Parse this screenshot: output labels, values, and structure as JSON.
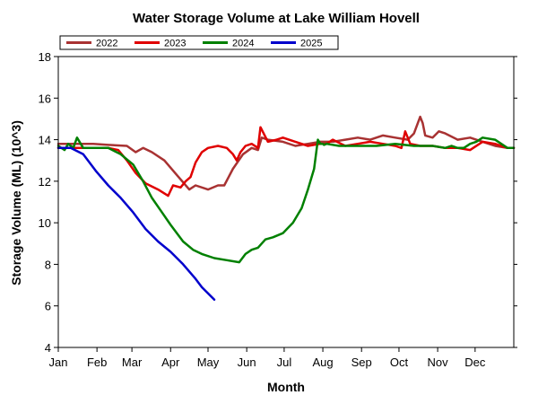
{
  "chart_data": {
    "type": "line",
    "title": "Water Storage Volume at Lake William Hovell",
    "xlabel": "Month",
    "ylabel": "Storage Volume (ML) (10^3)",
    "xlim": [
      0,
      365
    ],
    "ylim": [
      4,
      18
    ],
    "yticks": [
      4,
      6,
      8,
      10,
      12,
      14,
      16,
      18
    ],
    "xticks": [
      {
        "label": "Jan",
        "day": 0
      },
      {
        "label": "Feb",
        "day": 31
      },
      {
        "label": "Mar",
        "day": 59
      },
      {
        "label": "Apr",
        "day": 90
      },
      {
        "label": "May",
        "day": 120
      },
      {
        "label": "Jun",
        "day": 151
      },
      {
        "label": "Jul",
        "day": 181
      },
      {
        "label": "Aug",
        "day": 212
      },
      {
        "label": "Sep",
        "day": 243
      },
      {
        "label": "Oct",
        "day": 273
      },
      {
        "label": "Nov",
        "day": 304
      },
      {
        "label": "Dec",
        "day": 334
      }
    ],
    "grid": false,
    "legend_position": "top-left",
    "series": [
      {
        "name": "2022",
        "color": "#a83232",
        "x": [
          0,
          15,
          28,
          40,
          55,
          62,
          68,
          75,
          85,
          95,
          105,
          110,
          120,
          128,
          133,
          140,
          148,
          155,
          160,
          163,
          168,
          180,
          190,
          200,
          210,
          220,
          230,
          240,
          250,
          260,
          270,
          280,
          285,
          290,
          292,
          294,
          300,
          305,
          310,
          320,
          330,
          340,
          350,
          360,
          365
        ],
        "y": [
          13.8,
          13.8,
          13.8,
          13.75,
          13.7,
          13.4,
          13.6,
          13.4,
          13.0,
          12.3,
          11.6,
          11.8,
          11.6,
          11.8,
          11.8,
          12.6,
          13.3,
          13.6,
          13.5,
          14.1,
          14.0,
          13.9,
          13.7,
          13.8,
          13.9,
          13.9,
          14.0,
          14.1,
          14.0,
          14.2,
          14.1,
          14.0,
          14.3,
          15.1,
          14.8,
          14.2,
          14.1,
          14.4,
          14.3,
          14.0,
          14.1,
          13.9,
          13.7,
          13.6,
          13.6
        ]
      },
      {
        "name": "2023",
        "color": "#e00000",
        "x": [
          0,
          15,
          30,
          40,
          48,
          55,
          62,
          70,
          80,
          88,
          92,
          98,
          102,
          106,
          110,
          115,
          120,
          128,
          135,
          140,
          143,
          146,
          150,
          155,
          160,
          162,
          168,
          175,
          180,
          190,
          200,
          210,
          215,
          220,
          230,
          240,
          250,
          260,
          270,
          275,
          278,
          282,
          290,
          300,
          310,
          320,
          330,
          340,
          350,
          360,
          365
        ],
        "y": [
          13.6,
          13.6,
          13.6,
          13.6,
          13.5,
          13.0,
          12.4,
          11.9,
          11.6,
          11.3,
          11.8,
          11.7,
          12.0,
          12.2,
          12.9,
          13.4,
          13.6,
          13.7,
          13.6,
          13.3,
          13.0,
          13.4,
          13.7,
          13.8,
          13.6,
          14.6,
          13.9,
          14.0,
          14.1,
          13.9,
          13.7,
          13.8,
          13.8,
          14.0,
          13.7,
          13.8,
          13.9,
          13.8,
          13.7,
          13.6,
          14.4,
          13.8,
          13.7,
          13.7,
          13.6,
          13.6,
          13.5,
          13.9,
          13.8,
          13.6,
          13.6
        ]
      },
      {
        "name": "2024",
        "color": "#008000",
        "x": [
          0,
          5,
          8,
          12,
          15,
          20,
          30,
          40,
          50,
          60,
          68,
          75,
          82,
          90,
          100,
          108,
          115,
          125,
          135,
          145,
          150,
          155,
          160,
          166,
          172,
          180,
          188,
          195,
          200,
          205,
          208,
          210,
          212,
          213,
          215,
          225,
          240,
          255,
          270,
          285,
          300,
          310,
          315,
          320,
          325,
          330,
          335,
          340,
          350,
          360,
          365
        ],
        "y": [
          13.7,
          13.5,
          13.8,
          13.6,
          14.1,
          13.6,
          13.6,
          13.6,
          13.3,
          12.8,
          12.0,
          11.2,
          10.6,
          9.9,
          9.1,
          8.7,
          8.5,
          8.3,
          8.2,
          8.1,
          8.5,
          8.7,
          8.8,
          9.2,
          9.3,
          9.5,
          10.0,
          10.7,
          11.6,
          12.6,
          14.0,
          13.8,
          13.8,
          13.75,
          13.8,
          13.7,
          13.7,
          13.7,
          13.8,
          13.7,
          13.7,
          13.6,
          13.7,
          13.6,
          13.6,
          13.8,
          13.9,
          14.1,
          14.0,
          13.6,
          13.6
        ]
      },
      {
        "name": "2025",
        "color": "#0000cc",
        "x": [
          0,
          10,
          20,
          25,
          30,
          40,
          50,
          60,
          70,
          80,
          90,
          100,
          110,
          115,
          120,
          125
        ],
        "y": [
          13.6,
          13.6,
          13.3,
          12.9,
          12.5,
          11.8,
          11.2,
          10.5,
          9.7,
          9.1,
          8.6,
          8.0,
          7.3,
          6.9,
          6.6,
          6.3
        ]
      }
    ]
  }
}
